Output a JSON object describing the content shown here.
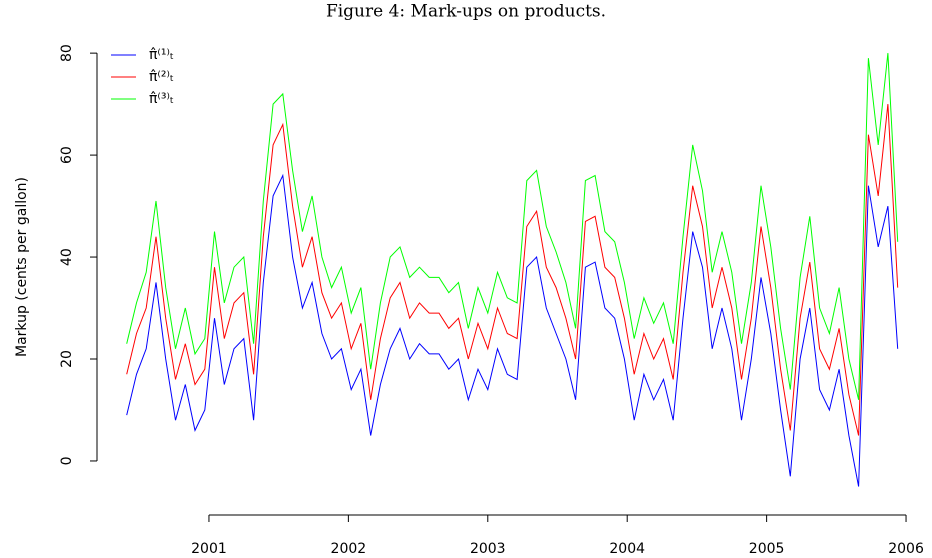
{
  "chart_data": {
    "type": "line",
    "title": "Figure 4: Mark-ups on products.",
    "y_label": "Markup (cents per gallon)",
    "x": [
      2000.41,
      2000.48,
      2000.55,
      2000.62,
      2000.69,
      2000.76,
      2000.83,
      2000.9,
      2000.97,
      2001.04,
      2001.11,
      2001.18,
      2001.25,
      2001.32,
      2001.39,
      2001.46,
      2001.53,
      2001.6,
      2001.67,
      2001.74,
      2001.81,
      2001.88,
      2001.95,
      2002.02,
      2002.09,
      2002.16,
      2002.23,
      2002.3,
      2002.37,
      2002.44,
      2002.51,
      2002.58,
      2002.65,
      2002.72,
      2002.79,
      2002.86,
      2002.93,
      2003.0,
      2003.07,
      2003.14,
      2003.21,
      2003.28,
      2003.35,
      2003.42,
      2003.49,
      2003.56,
      2003.63,
      2003.7,
      2003.77,
      2003.84,
      2003.91,
      2003.98,
      2004.05,
      2004.12,
      2004.19,
      2004.26,
      2004.33,
      2004.4,
      2004.47,
      2004.54,
      2004.61,
      2004.68,
      2004.75,
      2004.82,
      2004.89,
      2004.96,
      2005.03,
      2005.1,
      2005.17,
      2005.24,
      2005.31,
      2005.38,
      2005.45,
      2005.52,
      2005.59,
      2005.66,
      2005.73,
      2005.8,
      2005.87,
      2005.94
    ],
    "series": [
      {
        "name": "π̂⁽¹⁾ₜ",
        "color": "#0000ff",
        "values": [
          9,
          17,
          22,
          35,
          20,
          8,
          15,
          6,
          10,
          28,
          15,
          22,
          24,
          8,
          35,
          52,
          56,
          40,
          30,
          35,
          25,
          20,
          22,
          14,
          18,
          5,
          15,
          22,
          26,
          20,
          23,
          21,
          21,
          18,
          20,
          12,
          18,
          14,
          22,
          17,
          16,
          38,
          40,
          30,
          25,
          20,
          12,
          38,
          39,
          30,
          28,
          20,
          8,
          17,
          12,
          16,
          8,
          28,
          45,
          38,
          22,
          30,
          22,
          8,
          20,
          36,
          25,
          10,
          -3,
          20,
          30,
          14,
          10,
          18,
          5,
          -5,
          54,
          42,
          50,
          22
        ]
      },
      {
        "name": "π̂⁽²⁾ₜ",
        "color": "#ff0000",
        "values": [
          17,
          25,
          30,
          44,
          28,
          16,
          23,
          15,
          18,
          38,
          24,
          31,
          33,
          17,
          44,
          62,
          66,
          50,
          38,
          44,
          33,
          28,
          31,
          22,
          27,
          12,
          24,
          32,
          35,
          28,
          31,
          29,
          29,
          26,
          28,
          20,
          27,
          22,
          30,
          25,
          24,
          46,
          49,
          38,
          34,
          28,
          20,
          47,
          48,
          38,
          36,
          28,
          17,
          25,
          20,
          24,
          16,
          37,
          54,
          46,
          30,
          38,
          30,
          16,
          28,
          46,
          34,
          18,
          6,
          28,
          39,
          22,
          18,
          26,
          13,
          5,
          64,
          52,
          70,
          34
        ]
      },
      {
        "name": "π̂⁽³⁾ₜ",
        "color": "#00ff00",
        "values": [
          23,
          31,
          37,
          51,
          34,
          22,
          30,
          21,
          24,
          45,
          31,
          38,
          40,
          23,
          51,
          70,
          72,
          57,
          45,
          52,
          40,
          34,
          38,
          29,
          34,
          18,
          31,
          40,
          42,
          36,
          38,
          36,
          36,
          33,
          35,
          26,
          34,
          29,
          37,
          32,
          31,
          55,
          57,
          46,
          41,
          35,
          26,
          55,
          56,
          45,
          43,
          35,
          24,
          32,
          27,
          31,
          23,
          44,
          62,
          53,
          37,
          45,
          37,
          23,
          35,
          54,
          42,
          26,
          14,
          36,
          48,
          30,
          25,
          34,
          20,
          12,
          79,
          62,
          80,
          43
        ]
      }
    ],
    "xlim": [
      2000.197,
      2006.136
    ],
    "ylim": [
      -10.6,
      86.5
    ],
    "xticks": [
      2001,
      2002,
      2003,
      2004,
      2005,
      2006
    ],
    "yticks": [
      0,
      20,
      40,
      60,
      80
    ]
  }
}
